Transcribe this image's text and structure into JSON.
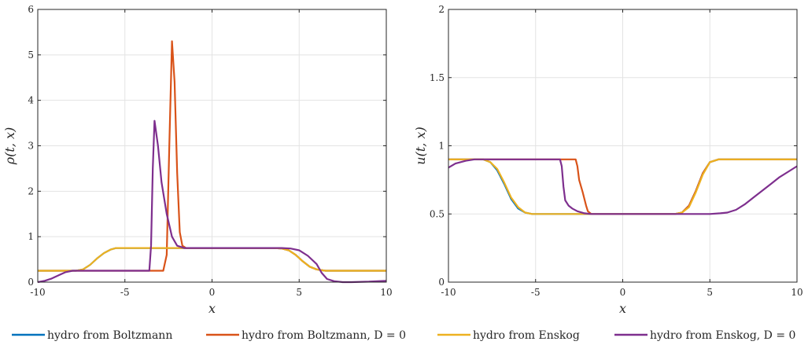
{
  "chart_data": [
    {
      "type": "line",
      "title": "",
      "xlabel": "x",
      "ylabel": "ρ(t, x)",
      "xlim": [
        -10,
        10
      ],
      "ylim": [
        0,
        6
      ],
      "xticks": [
        "-10",
        "-5",
        "0",
        "5",
        "10"
      ],
      "yticks": [
        "0",
        "1",
        "2",
        "3",
        "4",
        "5",
        "6"
      ],
      "grid": true,
      "series": [
        {
          "name": "hydro from Boltzmann",
          "color": "#0072BD",
          "x": [
            -10,
            -7.8,
            -7.4,
            -7.0,
            -6.6,
            -6.2,
            -5.8,
            -5.5,
            3.5,
            4.0,
            4.4,
            4.8,
            5.2,
            5.6,
            6.0,
            6.5,
            10
          ],
          "y": [
            0.25,
            0.25,
            0.28,
            0.38,
            0.52,
            0.64,
            0.72,
            0.75,
            0.75,
            0.74,
            0.7,
            0.6,
            0.46,
            0.34,
            0.28,
            0.25,
            0.25
          ]
        },
        {
          "name": "hydro from Boltzmann, D = 0",
          "color": "#D95319",
          "x": [
            -10,
            -8.6,
            -8.0,
            -2.8,
            -2.6,
            -2.45,
            -2.3,
            -2.15,
            -2.0,
            -1.85,
            -1.7,
            -1.5,
            3.5,
            4.0,
            4.4,
            4.8,
            5.2,
            5.6,
            6.0,
            6.5,
            10
          ],
          "y": [
            0.25,
            0.25,
            0.25,
            0.25,
            0.6,
            3.0,
            5.3,
            4.4,
            2.4,
            1.1,
            0.8,
            0.75,
            0.75,
            0.74,
            0.7,
            0.6,
            0.46,
            0.34,
            0.28,
            0.25,
            0.25
          ]
        },
        {
          "name": "hydro from Enskog",
          "color": "#EDB120",
          "x": [
            -10,
            -7.8,
            -7.4,
            -7.0,
            -6.6,
            -6.2,
            -5.8,
            -5.5,
            3.5,
            4.0,
            4.4,
            4.8,
            5.2,
            5.6,
            6.0,
            6.5,
            10
          ],
          "y": [
            0.25,
            0.25,
            0.28,
            0.38,
            0.52,
            0.64,
            0.72,
            0.75,
            0.75,
            0.74,
            0.7,
            0.6,
            0.46,
            0.34,
            0.28,
            0.25,
            0.25
          ]
        },
        {
          "name": "hydro from Enskog, D = 0",
          "color": "#7E2F8E",
          "x": [
            -10,
            -9.6,
            -9.2,
            -8.8,
            -8.4,
            -8.0,
            -7.5,
            -3.6,
            -3.5,
            -3.4,
            -3.3,
            -3.1,
            -2.9,
            -2.6,
            -2.3,
            -2.0,
            -1.6,
            4.0,
            4.5,
            5.0,
            5.5,
            6.0,
            6.3,
            6.6,
            7.0,
            7.5,
            8.0,
            9.0,
            10
          ],
          "y": [
            0.0,
            0.03,
            0.08,
            0.15,
            0.22,
            0.25,
            0.25,
            0.25,
            0.8,
            2.5,
            3.55,
            3.0,
            2.2,
            1.5,
            1.0,
            0.8,
            0.75,
            0.75,
            0.74,
            0.7,
            0.58,
            0.4,
            0.2,
            0.07,
            0.02,
            0.0,
            0.0,
            0.01,
            0.03
          ]
        }
      ]
    },
    {
      "type": "line",
      "title": "",
      "xlabel": "x",
      "ylabel": "u(t, x)",
      "xlim": [
        -10,
        10
      ],
      "ylim": [
        0,
        2
      ],
      "xticks": [
        "-10",
        "-5",
        "0",
        "5",
        "10"
      ],
      "yticks": [
        "0",
        "0.5",
        "1",
        "1.5",
        "2"
      ],
      "grid": true,
      "series": [
        {
          "name": "hydro from Boltzmann",
          "color": "#0072BD",
          "x": [
            -10,
            -9.0,
            -8.0,
            -7.6,
            -7.2,
            -6.8,
            -6.4,
            -6.0,
            -5.6,
            -5.2,
            3.0,
            3.4,
            3.8,
            4.2,
            4.6,
            5.0,
            5.5,
            10
          ],
          "y": [
            0.9,
            0.9,
            0.9,
            0.88,
            0.82,
            0.72,
            0.61,
            0.54,
            0.51,
            0.5,
            0.5,
            0.51,
            0.56,
            0.67,
            0.8,
            0.88,
            0.9,
            0.9
          ]
        },
        {
          "name": "hydro from Boltzmann, D = 0",
          "color": "#D95319",
          "x": [
            -10,
            -9.0,
            -3.0,
            -2.7,
            -2.6,
            -2.5,
            -2.3,
            -2.1,
            -2.0,
            -1.8,
            3.0,
            3.4,
            3.8,
            4.2,
            4.6,
            5.0,
            5.5,
            10
          ],
          "y": [
            0.9,
            0.9,
            0.9,
            0.9,
            0.85,
            0.75,
            0.66,
            0.56,
            0.52,
            0.5,
            0.5,
            0.51,
            0.56,
            0.67,
            0.8,
            0.88,
            0.9,
            0.9
          ]
        },
        {
          "name": "hydro from Enskog",
          "color": "#EDB120",
          "x": [
            -10,
            -9.0,
            -8.0,
            -7.6,
            -7.2,
            -6.8,
            -6.4,
            -6.0,
            -5.6,
            -5.2,
            3.0,
            3.4,
            3.8,
            4.2,
            4.6,
            5.0,
            5.5,
            10
          ],
          "y": [
            0.9,
            0.9,
            0.9,
            0.88,
            0.83,
            0.73,
            0.62,
            0.55,
            0.51,
            0.5,
            0.5,
            0.51,
            0.55,
            0.66,
            0.79,
            0.88,
            0.9,
            0.9
          ]
        },
        {
          "name": "hydro from Enskog, D = 0",
          "color": "#7E2F8E",
          "x": [
            -10,
            -9.6,
            -9.0,
            -8.5,
            -3.6,
            -3.5,
            -3.4,
            -3.3,
            -3.1,
            -2.9,
            -2.6,
            -2.2,
            -1.8,
            5.0,
            5.6,
            6.0,
            6.5,
            7.0,
            7.5,
            8.0,
            8.5,
            9.0,
            9.5,
            10
          ],
          "y": [
            0.84,
            0.87,
            0.89,
            0.9,
            0.9,
            0.85,
            0.7,
            0.6,
            0.56,
            0.54,
            0.52,
            0.505,
            0.5,
            0.5,
            0.505,
            0.51,
            0.53,
            0.57,
            0.62,
            0.67,
            0.72,
            0.77,
            0.81,
            0.85
          ]
        }
      ]
    }
  ],
  "legend": {
    "placement": "bottom",
    "items": [
      {
        "label": "hydro from Boltzmann",
        "color": "#0072BD"
      },
      {
        "label": "hydro from Boltzmann, D = 0",
        "color": "#D95319"
      },
      {
        "label": "hydro from Enskog",
        "color": "#EDB120"
      },
      {
        "label": "hydro from Enskog, D = 0",
        "color": "#7E2F8E"
      }
    ]
  }
}
